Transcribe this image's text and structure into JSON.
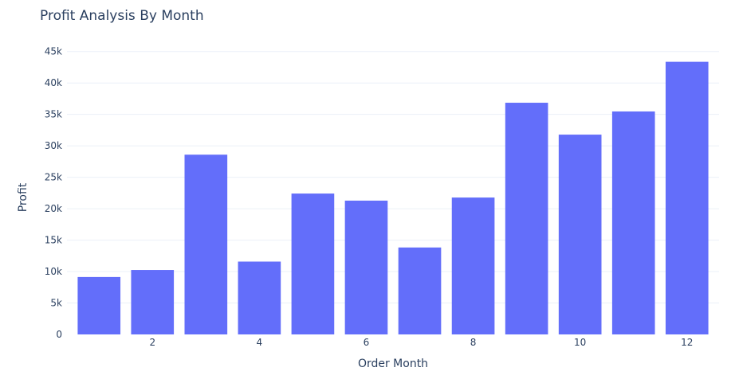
{
  "chart_data": {
    "type": "bar",
    "title": "Profit Analysis By Month",
    "xlabel": "Order Month",
    "ylabel": "Profit",
    "x": [
      1,
      2,
      3,
      4,
      5,
      6,
      7,
      8,
      9,
      10,
      11,
      12
    ],
    "values": [
      9134,
      10254,
      28594,
      11588,
      22411,
      21285,
      13832,
      21776,
      36857,
      31784,
      35469,
      43369
    ],
    "ylim": [
      0,
      45600
    ],
    "xlim": [
      0.4,
      12.6
    ],
    "yticks": [
      0,
      5000,
      10000,
      15000,
      20000,
      25000,
      30000,
      35000,
      40000,
      45000
    ],
    "ytick_labels": [
      "0",
      "5k",
      "10k",
      "15k",
      "20k",
      "25k",
      "30k",
      "35k",
      "40k",
      "45k"
    ],
    "xticks": [
      2,
      4,
      6,
      8,
      10,
      12
    ],
    "xtick_labels": [
      "2",
      "4",
      "6",
      "8",
      "10",
      "12"
    ],
    "bar_color": "#636efa",
    "grid": true,
    "legend": "none"
  }
}
